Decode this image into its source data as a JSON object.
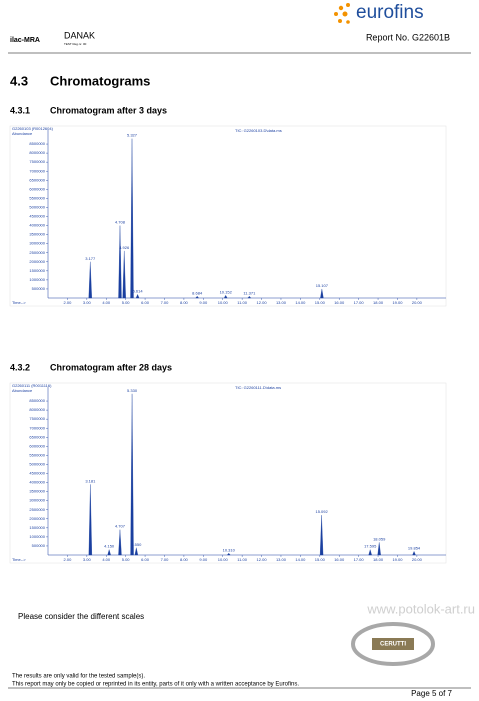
{
  "header": {
    "accreditation": "ilac-MRA",
    "danak": "DANAK",
    "danak_sub": "TEST Reg.nr. 00",
    "logo": "eurofins",
    "report_no": "Report No. G22601B"
  },
  "section": {
    "number": "4.3",
    "title": "Chromatograms"
  },
  "chart_data": [
    {
      "type": "chromatogram",
      "number": "4.3.1",
      "title": "Chromatogram after 3 days",
      "subtitle": "G2260103 (R0012604)",
      "annotation": "TIC: G2260103.D\\data.ms",
      "y_label": "Abundance",
      "x_label": "Time-->",
      "color": "#1a3fa0",
      "x": [
        3.177,
        4.708,
        4.926,
        5.327,
        5.614,
        8.684,
        10.152,
        11.371,
        15.107
      ],
      "values": [
        2000000,
        4000000,
        2600000,
        8800000,
        200000,
        100000,
        150000,
        100000,
        500000
      ],
      "peak_labels": [
        "3.177",
        "4.708",
        "4.926",
        "5.327",
        "5.614",
        "8.684",
        "10.152",
        "11.371",
        "15.107"
      ],
      "xlim": [
        1,
        21.5
      ],
      "xticks": [
        {
          "value": 2,
          "label": "2.00"
        },
        {
          "value": 3,
          "label": "3.00"
        },
        {
          "value": 4,
          "label": "4.00"
        },
        {
          "value": 5,
          "label": "5.00"
        },
        {
          "value": 6,
          "label": "6.00"
        },
        {
          "value": 7,
          "label": "7.00"
        },
        {
          "value": 8,
          "label": "8.00"
        },
        {
          "value": 9,
          "label": "9.00"
        },
        {
          "value": 10,
          "label": "10.00"
        },
        {
          "value": 11,
          "label": "11.00"
        },
        {
          "value": 12,
          "label": "12.00"
        },
        {
          "value": 13,
          "label": "13.00"
        },
        {
          "value": 14,
          "label": "14.00"
        },
        {
          "value": 15,
          "label": "15.00"
        },
        {
          "value": 16,
          "label": "16.00"
        },
        {
          "value": 17,
          "label": "17.00"
        },
        {
          "value": 18,
          "label": "18.00"
        },
        {
          "value": 19,
          "label": "19.00"
        },
        {
          "value": 20,
          "label": "20.00"
        }
      ],
      "ylim": [
        0,
        9000000
      ],
      "yticks": [
        500000,
        1000000,
        1500000,
        2000000,
        2500000,
        3000000,
        3500000,
        4000000,
        4500000,
        5000000,
        5500000,
        6000000,
        6500000,
        7000000,
        7500000,
        8000000,
        8500000
      ]
    },
    {
      "type": "chromatogram",
      "number": "4.3.2",
      "title": "Chromatogram after 28 days",
      "subtitle": "G2260111 (R0011116)",
      "annotation": "TIC: G2260111.D\\data.ms",
      "y_label": "Abundance",
      "x_label": "Time-->",
      "color": "#1a3fa0",
      "x": [
        3.181,
        4.15,
        4.707,
        5.33,
        5.55,
        10.31,
        15.092,
        17.595,
        18.059,
        19.854
      ],
      "values": [
        3900000,
        300000,
        1400000,
        8900000,
        400000,
        100000,
        2200000,
        300000,
        700000,
        200000
      ],
      "peak_labels": [
        "3.181",
        "4.150",
        "4.707",
        "5.330",
        "5.550",
        "10.310",
        "15.092",
        "17.595",
        "18.059",
        "19.854"
      ],
      "xlim": [
        1,
        21.5
      ],
      "xticks": [
        {
          "value": 2,
          "label": "2.00"
        },
        {
          "value": 3,
          "label": "3.00"
        },
        {
          "value": 4,
          "label": "4.00"
        },
        {
          "value": 5,
          "label": "5.00"
        },
        {
          "value": 6,
          "label": "6.00"
        },
        {
          "value": 7,
          "label": "7.00"
        },
        {
          "value": 8,
          "label": "8.00"
        },
        {
          "value": 9,
          "label": "9.00"
        },
        {
          "value": 10,
          "label": "10.00"
        },
        {
          "value": 11,
          "label": "11.00"
        },
        {
          "value": 12,
          "label": "12.00"
        },
        {
          "value": 13,
          "label": "13.00"
        },
        {
          "value": 14,
          "label": "14.00"
        },
        {
          "value": 15,
          "label": "15.00"
        },
        {
          "value": 16,
          "label": "16.00"
        },
        {
          "value": 17,
          "label": "17.00"
        },
        {
          "value": 18,
          "label": "18.00"
        },
        {
          "value": 19,
          "label": "19.00"
        },
        {
          "value": 20,
          "label": "20.00"
        }
      ],
      "ylim": [
        0,
        9000000
      ],
      "yticks": [
        500000,
        1000000,
        1500000,
        2000000,
        2500000,
        3000000,
        3500000,
        4000000,
        4500000,
        5000000,
        5500000,
        6000000,
        6500000,
        7000000,
        7500000,
        8000000,
        8500000
      ]
    }
  ],
  "note": "Please consider the different scales",
  "watermark": "www.potolok-art.ru",
  "stamp": "CERUTTI",
  "footer": {
    "line1": "The results are only valid for the tested sample(s).",
    "line2": "This report may only be copied or reprinted in its entity, parts of it only with a written acceptance by Eurofins.",
    "page": "Page 5 of 7"
  }
}
